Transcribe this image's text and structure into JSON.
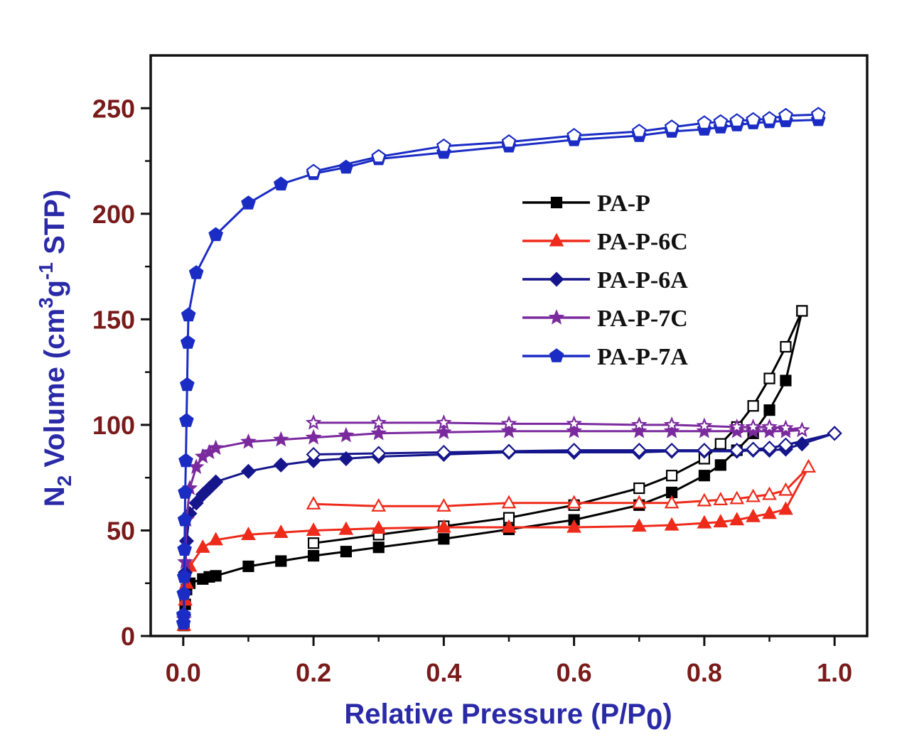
{
  "chart_data": {
    "type": "line",
    "xlabel": "Relative Pressure (P/P0)",
    "ylabel": "N2 Volume (cm3g-1 STP)",
    "xlim": [
      -0.05,
      1.05
    ],
    "ylim": [
      0,
      275
    ],
    "x_ticks": [
      "0.0",
      "0.2",
      "0.4",
      "0.6",
      "0.8",
      "1.0"
    ],
    "y_ticks": [
      "0",
      "50",
      "100",
      "150",
      "200",
      "250"
    ],
    "legend_position": "center-right",
    "series": [
      {
        "name": "PA-P",
        "color": "#000000",
        "marker": "square",
        "adsorption": [
          [
            0.001,
            5
          ],
          [
            0.003,
            15
          ],
          [
            0.005,
            22
          ],
          [
            0.01,
            25
          ],
          [
            0.03,
            27
          ],
          [
            0.04,
            28
          ],
          [
            0.05,
            28.5
          ],
          [
            0.1,
            33
          ],
          [
            0.15,
            35.5
          ],
          [
            0.2,
            38
          ],
          [
            0.25,
            40
          ],
          [
            0.3,
            42
          ],
          [
            0.4,
            46
          ],
          [
            0.5,
            50.5
          ],
          [
            0.6,
            55
          ],
          [
            0.7,
            62
          ],
          [
            0.75,
            68
          ],
          [
            0.8,
            76
          ],
          [
            0.825,
            81
          ],
          [
            0.85,
            88
          ],
          [
            0.875,
            96
          ],
          [
            0.9,
            107
          ],
          [
            0.925,
            121
          ],
          [
            0.95,
            154
          ]
        ],
        "desorption": [
          [
            0.95,
            154
          ],
          [
            0.925,
            137
          ],
          [
            0.9,
            122
          ],
          [
            0.875,
            109
          ],
          [
            0.85,
            99
          ],
          [
            0.825,
            91
          ],
          [
            0.8,
            84
          ],
          [
            0.75,
            76
          ],
          [
            0.7,
            70
          ],
          [
            0.6,
            62
          ],
          [
            0.5,
            56
          ],
          [
            0.4,
            52
          ],
          [
            0.3,
            48
          ],
          [
            0.2,
            44
          ]
        ]
      },
      {
        "name": "PA-P-6C",
        "color": "#ee2a1a",
        "marker": "triangle",
        "adsorption": [
          [
            0.001,
            5
          ],
          [
            0.003,
            17
          ],
          [
            0.005,
            25
          ],
          [
            0.01,
            33
          ],
          [
            0.03,
            42
          ],
          [
            0.05,
            45.5
          ],
          [
            0.1,
            48
          ],
          [
            0.15,
            49
          ],
          [
            0.2,
            50
          ],
          [
            0.25,
            50.5
          ],
          [
            0.3,
            51
          ],
          [
            0.4,
            51.5
          ],
          [
            0.5,
            51.5
          ],
          [
            0.6,
            51.5
          ],
          [
            0.7,
            52
          ],
          [
            0.75,
            52.5
          ],
          [
            0.8,
            53.5
          ],
          [
            0.825,
            54
          ],
          [
            0.85,
            55
          ],
          [
            0.875,
            56.5
          ],
          [
            0.9,
            58
          ],
          [
            0.925,
            60
          ],
          [
            0.96,
            80
          ]
        ],
        "desorption": [
          [
            0.96,
            80
          ],
          [
            0.925,
            69
          ],
          [
            0.9,
            67
          ],
          [
            0.875,
            66
          ],
          [
            0.85,
            65
          ],
          [
            0.825,
            64.5
          ],
          [
            0.8,
            64
          ],
          [
            0.75,
            63
          ],
          [
            0.7,
            63
          ],
          [
            0.6,
            63
          ],
          [
            0.5,
            63
          ],
          [
            0.4,
            61.5
          ],
          [
            0.3,
            61.5
          ],
          [
            0.2,
            62.5
          ]
        ]
      },
      {
        "name": "PA-P-6A",
        "color": "#15158c",
        "marker": "diamond",
        "adsorption": [
          [
            0.001,
            10
          ],
          [
            0.003,
            30
          ],
          [
            0.005,
            45
          ],
          [
            0.01,
            58
          ],
          [
            0.02,
            63
          ],
          [
            0.03,
            67
          ],
          [
            0.04,
            70
          ],
          [
            0.05,
            73
          ],
          [
            0.1,
            78
          ],
          [
            0.15,
            81
          ],
          [
            0.2,
            83
          ],
          [
            0.25,
            84
          ],
          [
            0.3,
            85
          ],
          [
            0.4,
            86
          ],
          [
            0.5,
            87
          ],
          [
            0.6,
            87
          ],
          [
            0.7,
            87
          ],
          [
            0.75,
            87.5
          ],
          [
            0.8,
            87.5
          ],
          [
            0.85,
            87.5
          ],
          [
            0.875,
            88
          ],
          [
            0.9,
            88
          ],
          [
            0.925,
            88.5
          ],
          [
            0.95,
            91
          ],
          [
            1.0,
            96
          ]
        ],
        "desorption": [
          [
            1.0,
            96
          ],
          [
            0.925,
            90.5
          ],
          [
            0.9,
            89
          ],
          [
            0.875,
            88.5
          ],
          [
            0.85,
            88
          ],
          [
            0.8,
            88
          ],
          [
            0.75,
            88
          ],
          [
            0.7,
            88
          ],
          [
            0.6,
            88
          ],
          [
            0.5,
            87.5
          ],
          [
            0.4,
            87
          ],
          [
            0.3,
            86.5
          ],
          [
            0.2,
            86
          ]
        ]
      },
      {
        "name": "PA-P-7C",
        "color": "#7b2a9e",
        "marker": "star",
        "adsorption": [
          [
            0.001,
            8
          ],
          [
            0.003,
            35
          ],
          [
            0.005,
            55
          ],
          [
            0.01,
            70
          ],
          [
            0.02,
            80
          ],
          [
            0.03,
            85
          ],
          [
            0.04,
            87
          ],
          [
            0.05,
            89
          ],
          [
            0.1,
            92
          ],
          [
            0.15,
            93
          ],
          [
            0.2,
            94
          ],
          [
            0.25,
            95
          ],
          [
            0.3,
            96
          ],
          [
            0.4,
            96.5
          ],
          [
            0.5,
            97
          ],
          [
            0.6,
            97
          ],
          [
            0.7,
            97
          ],
          [
            0.75,
            97
          ],
          [
            0.8,
            97
          ],
          [
            0.85,
            97
          ],
          [
            0.875,
            97
          ],
          [
            0.9,
            97
          ],
          [
            0.925,
            97
          ],
          [
            0.95,
            97.5
          ]
        ],
        "desorption": [
          [
            0.95,
            97.5
          ],
          [
            0.925,
            98.5
          ],
          [
            0.9,
            99
          ],
          [
            0.875,
            99
          ],
          [
            0.85,
            99
          ],
          [
            0.8,
            99.5
          ],
          [
            0.75,
            100
          ],
          [
            0.7,
            100
          ],
          [
            0.6,
            100.5
          ],
          [
            0.5,
            100.5
          ],
          [
            0.4,
            101
          ],
          [
            0.3,
            101
          ],
          [
            0.2,
            101
          ]
        ]
      },
      {
        "name": "PA-P-7A",
        "color": "#1a2cc4",
        "marker": "pentagon",
        "adsorption": [
          [
            0.0003,
            6
          ],
          [
            0.0005,
            10
          ],
          [
            0.001,
            20
          ],
          [
            0.0015,
            28
          ],
          [
            0.002,
            41
          ],
          [
            0.0025,
            55
          ],
          [
            0.003,
            68
          ],
          [
            0.004,
            83
          ],
          [
            0.005,
            102
          ],
          [
            0.006,
            119
          ],
          [
            0.007,
            139
          ],
          [
            0.008,
            152
          ],
          [
            0.02,
            172
          ],
          [
            0.05,
            190
          ],
          [
            0.1,
            205
          ],
          [
            0.15,
            214
          ],
          [
            0.2,
            219
          ],
          [
            0.25,
            222
          ],
          [
            0.3,
            226
          ],
          [
            0.4,
            229
          ],
          [
            0.5,
            232
          ],
          [
            0.6,
            235
          ],
          [
            0.7,
            237
          ],
          [
            0.75,
            239
          ],
          [
            0.8,
            240
          ],
          [
            0.825,
            241
          ],
          [
            0.85,
            242
          ],
          [
            0.875,
            243
          ],
          [
            0.9,
            243.5
          ],
          [
            0.925,
            244
          ],
          [
            0.975,
            244.5
          ]
        ],
        "desorption": [
          [
            0.975,
            247
          ],
          [
            0.925,
            246.5
          ],
          [
            0.9,
            245
          ],
          [
            0.875,
            244.5
          ],
          [
            0.85,
            244
          ],
          [
            0.825,
            243.5
          ],
          [
            0.8,
            243
          ],
          [
            0.75,
            241
          ],
          [
            0.7,
            239
          ],
          [
            0.6,
            237
          ],
          [
            0.5,
            234
          ],
          [
            0.4,
            232
          ],
          [
            0.3,
            227
          ],
          [
            0.2,
            220
          ]
        ]
      }
    ]
  }
}
